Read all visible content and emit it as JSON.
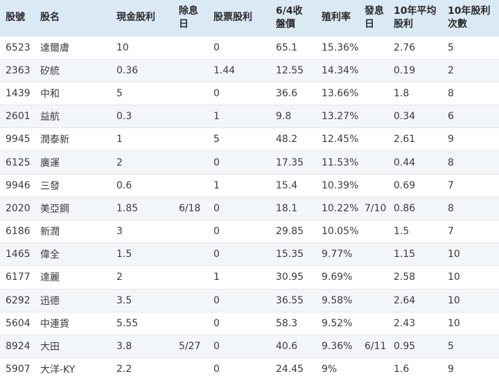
{
  "headers": [
    "股號",
    "股名",
    "現金股利",
    "除息\n日",
    "股票股利",
    "6/4收\n盤價",
    "殖利率",
    "發息\n日",
    "10年平均\n股利",
    "10年股利\n次數"
  ],
  "rows": [
    [
      "6523",
      "達爾膚",
      "10",
      "",
      "0",
      "65.1",
      "15.36%",
      "",
      "2.76",
      "5"
    ],
    [
      "2363",
      "矽統",
      "0.36",
      "",
      "1.44",
      "12.55",
      "14.34%",
      "",
      "0.19",
      "2"
    ],
    [
      "1439",
      "中和",
      "5",
      "",
      "0",
      "36.6",
      "13.66%",
      "",
      "1.8",
      "8"
    ],
    [
      "2601",
      "益航",
      "0.3",
      "",
      "1",
      "9.8",
      "13.27%",
      "",
      "0.34",
      "6"
    ],
    [
      "9945",
      "潤泰新",
      "1",
      "",
      "5",
      "48.2",
      "12.45%",
      "",
      "2.61",
      "9"
    ],
    [
      "6125",
      "廣運",
      "2",
      "",
      "0",
      "17.35",
      "11.53%",
      "",
      "0.44",
      "8"
    ],
    [
      "9946",
      "三發",
      "0.6",
      "",
      "1",
      "15.4",
      "10.39%",
      "",
      "0.69",
      "7"
    ],
    [
      "2020",
      "美亞鋼",
      "1.85",
      "6/18",
      "0",
      "18.1",
      "10.22%",
      "7/10",
      "0.86",
      "8"
    ],
    [
      "6186",
      "新潤",
      "3",
      "",
      "0",
      "29.85",
      "10.05%",
      "",
      "1.5",
      "7"
    ],
    [
      "1465",
      "偉全",
      "1.5",
      "",
      "0",
      "15.35",
      "9.77%",
      "",
      "1.15",
      "10"
    ],
    [
      "6177",
      "達麗",
      "2",
      "",
      "1",
      "30.95",
      "9.69%",
      "",
      "2.58",
      "10"
    ],
    [
      "6292",
      "迅德",
      "3.5",
      "",
      "0",
      "36.55",
      "9.58%",
      "",
      "2.64",
      "10"
    ],
    [
      "5604",
      "中連貨",
      "5.55",
      "",
      "0",
      "58.3",
      "9.52%",
      "",
      "2.43",
      "10"
    ],
    [
      "8924",
      "大田",
      "3.8",
      "5/27",
      "0",
      "40.6",
      "9.36%",
      "6/11",
      "0.95",
      "5"
    ],
    [
      "5907",
      "大洋-KY",
      "2.2",
      "",
      "0",
      "24.45",
      "9%",
      "",
      "1.6",
      "9"
    ]
  ]
}
